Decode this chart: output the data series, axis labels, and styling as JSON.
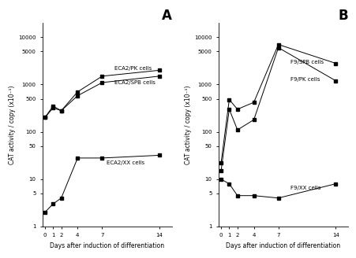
{
  "days_A": [
    0,
    1,
    2,
    4,
    7,
    14
  ],
  "days_B": [
    0,
    1,
    2,
    4,
    7,
    14
  ],
  "A_PK": [
    200,
    350,
    280,
    700,
    1500,
    2000
  ],
  "A_SPB": [
    200,
    320,
    280,
    580,
    1100,
    1500
  ],
  "A_XX": [
    2.0,
    3.0,
    4.0,
    28,
    28,
    32
  ],
  "B_SPB": [
    22,
    480,
    300,
    420,
    7000,
    2800
  ],
  "B_PK": [
    15,
    300,
    110,
    180,
    6000,
    1200
  ],
  "B_XX": [
    10,
    8,
    4.5,
    4.5,
    4.0,
    8
  ],
  "label_A_PK": "ECA2/PK cells",
  "label_A_SPB": "ECA2/SPB cells",
  "label_A_XX": "ECA2/XX cells",
  "label_B_SPB": "F9/SPB cells",
  "label_B_PK": "F9/PK cells",
  "label_B_XX": "F9/XX cells",
  "xlabel": "Days after induction of differentiation",
  "ylabel_A": "CAT activity / copy (x10⁻¹)",
  "ylabel_B": "CAT activity / copy (x10⁻¹)",
  "title_A": "A",
  "title_B": "B",
  "yticks": [
    1,
    5,
    10,
    50,
    100,
    500,
    1000,
    5000,
    10000
  ],
  "ytick_labels": [
    "1",
    "5",
    "10",
    "50",
    "100",
    "500",
    "1000",
    "5000",
    "10000"
  ],
  "ylim": [
    1,
    20000
  ],
  "xlim": [
    -0.3,
    15.5
  ],
  "line_color": "#000000",
  "marker": "s",
  "marker_size": 2.5,
  "linewidth": 0.7,
  "fontsize_label": 5.5,
  "fontsize_tick": 5.0,
  "fontsize_title": 12,
  "fontsize_annot": 5.0
}
